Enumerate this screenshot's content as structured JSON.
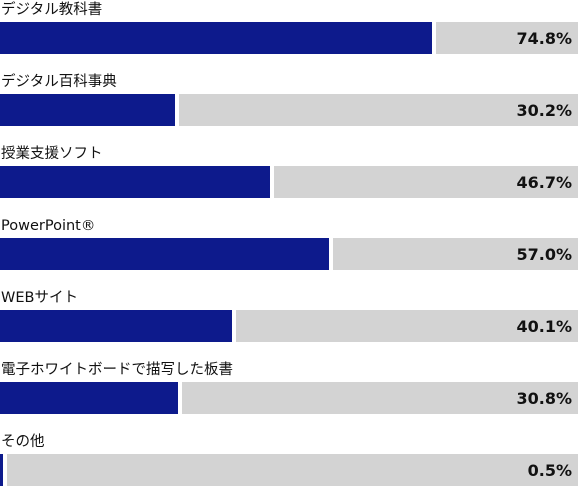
{
  "chart_data": {
    "type": "bar",
    "orientation": "horizontal",
    "categories": [
      "デジタル教科書",
      "デジタル百科事典",
      "授業支援ソフト",
      "PowerPoint®",
      "WEBサイト",
      "電子ホワイトボードで描写した板書",
      "その他"
    ],
    "values": [
      74.8,
      30.2,
      46.7,
      57.0,
      40.1,
      30.8,
      0.5
    ],
    "value_labels": [
      "74.8%",
      "30.2%",
      "46.7%",
      "57.0%",
      "40.1%",
      "30.8%",
      "0.5%"
    ],
    "xlim": [
      0,
      100
    ],
    "colors": {
      "bar": "#0d1a8c",
      "track": "#d3d3d3"
    }
  }
}
